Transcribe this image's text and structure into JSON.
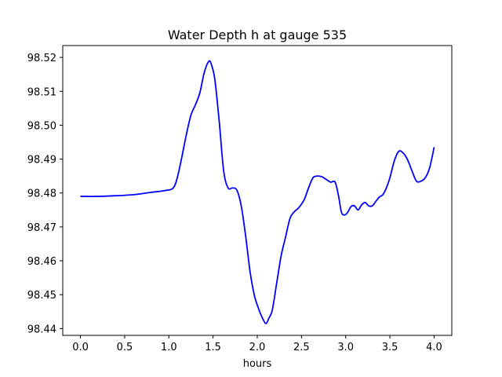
{
  "chart_data": {
    "type": "line",
    "title": "Water Depth h at gauge 535",
    "xlabel": "hours",
    "ylabel": "",
    "xlim": [
      -0.2,
      4.2
    ],
    "ylim": [
      98.438,
      98.5235
    ],
    "xticks": [
      0.0,
      0.5,
      1.0,
      1.5,
      2.0,
      2.5,
      3.0,
      3.5,
      4.0
    ],
    "xtick_labels": [
      "0.0",
      "0.5",
      "1.0",
      "1.5",
      "2.0",
      "2.5",
      "3.0",
      "3.5",
      "4.0"
    ],
    "yticks": [
      98.44,
      98.45,
      98.46,
      98.47,
      98.48,
      98.49,
      98.5,
      98.51,
      98.52
    ],
    "ytick_labels": [
      "98.44",
      "98.45",
      "98.46",
      "98.47",
      "98.48",
      "98.49",
      "98.50",
      "98.51",
      "98.52"
    ],
    "grid": false,
    "series": [
      {
        "color": "#0000ff",
        "x": [
          0.0,
          0.2,
          0.4,
          0.6,
          0.8,
          0.95,
          1.05,
          1.1,
          1.15,
          1.2,
          1.25,
          1.3,
          1.35,
          1.4,
          1.45,
          1.48,
          1.52,
          1.57,
          1.62,
          1.67,
          1.72,
          1.77,
          1.82,
          1.87,
          1.92,
          1.97,
          2.02,
          2.07,
          2.1,
          2.13,
          2.17,
          2.22,
          2.27,
          2.32,
          2.37,
          2.42,
          2.47,
          2.53,
          2.58,
          2.63,
          2.68,
          2.73,
          2.78,
          2.83,
          2.88,
          2.92,
          2.95,
          2.98,
          3.02,
          3.06,
          3.1,
          3.14,
          3.18,
          3.22,
          3.26,
          3.3,
          3.34,
          3.38,
          3.42,
          3.46,
          3.5,
          3.55,
          3.6,
          3.65,
          3.7,
          3.75,
          3.8,
          3.85,
          3.9,
          3.95,
          4.0
        ],
        "y": [
          98.479,
          98.479,
          98.4792,
          98.4795,
          98.4802,
          98.4807,
          98.4815,
          98.485,
          98.491,
          98.4975,
          98.503,
          98.506,
          98.5095,
          98.5155,
          98.5188,
          98.518,
          98.5135,
          98.501,
          98.4865,
          98.4815,
          98.4815,
          98.4808,
          98.476,
          98.467,
          98.4565,
          98.4495,
          98.4455,
          98.4425,
          98.4415,
          98.443,
          98.4455,
          98.4535,
          98.4615,
          98.467,
          98.4725,
          98.4745,
          98.4757,
          98.478,
          98.4815,
          98.4845,
          98.485,
          98.4848,
          98.484,
          98.4832,
          98.4832,
          98.479,
          98.4745,
          98.4735,
          98.4742,
          98.476,
          98.4762,
          98.475,
          98.4765,
          98.4772,
          98.4762,
          98.4762,
          98.4775,
          98.4788,
          98.4795,
          98.4815,
          98.4845,
          98.4895,
          98.4923,
          98.4918,
          98.4898,
          98.4865,
          98.4835,
          98.4835,
          98.4845,
          98.4875,
          98.4935
        ]
      }
    ]
  }
}
